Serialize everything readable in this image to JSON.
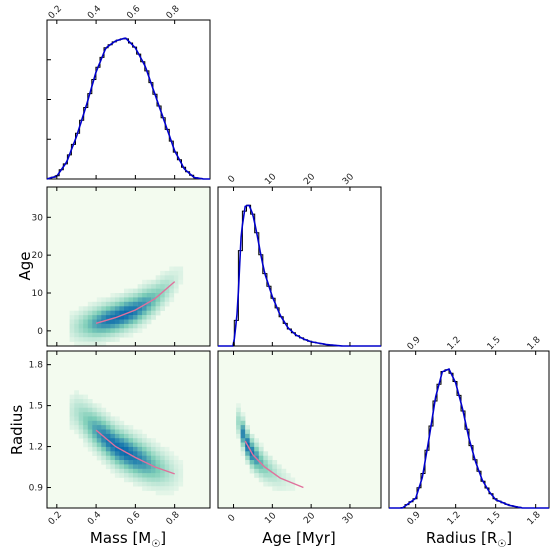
{
  "colors": {
    "hist_step": "#000000",
    "hist_smooth": "#0000cc",
    "density_low": "#f3fbef",
    "density_mid": "#7ccdb7",
    "density_high": "#0868ac",
    "contour": "#e0719c"
  },
  "chart_data": {
    "type": "corner",
    "variables": [
      {
        "key": "mass",
        "axis_label": "Mass [M",
        "axis_label_sub": "☉",
        "axis_label_end": "]",
        "ticks": [
          0.2,
          0.4,
          0.6,
          0.8
        ],
        "tick_labels": [
          "0.2",
          "0.4",
          "0.6",
          "0.8"
        ],
        "range": [
          0.15,
          0.98
        ]
      },
      {
        "key": "age",
        "axis_label": "Age [Myr]",
        "ticks": [
          0,
          10,
          20,
          30
        ],
        "tick_labels": [
          "0",
          "10",
          "20",
          "30"
        ],
        "range": [
          -4,
          38
        ]
      },
      {
        "key": "radius",
        "axis_label": "Radius [R",
        "axis_label_sub": "☉",
        "axis_label_end": "]",
        "ticks": [
          0.9,
          1.2,
          1.5,
          1.8
        ],
        "tick_labels": [
          "0.9",
          "1.2",
          "1.5",
          "1.8"
        ],
        "range": [
          0.7,
          1.9
        ]
      }
    ],
    "row_labels": {
      "age": "Age",
      "radius": "Radius"
    },
    "left_ticks": {
      "age": {
        "ticks": [
          0,
          10,
          20,
          30
        ],
        "labels": [
          "0",
          "10",
          "20",
          "30"
        ],
        "range": [
          -4,
          38
        ]
      },
      "radius": {
        "ticks": [
          0.9,
          1.2,
          1.5,
          1.8
        ],
        "labels": [
          "0.9",
          "1.2",
          "1.5",
          "1.8"
        ],
        "range": [
          0.75,
          1.9
        ]
      }
    },
    "histograms": {
      "mass": {
        "x": [
          0.15,
          0.2,
          0.25,
          0.3,
          0.35,
          0.4,
          0.45,
          0.5,
          0.55,
          0.6,
          0.65,
          0.7,
          0.75,
          0.8,
          0.85,
          0.9,
          0.95,
          0.98
        ],
        "y": [
          0.0,
          0.02,
          0.12,
          0.3,
          0.52,
          0.76,
          0.93,
          0.98,
          1.0,
          0.93,
          0.8,
          0.6,
          0.4,
          0.2,
          0.07,
          0.01,
          0.0,
          0.0
        ]
      },
      "age": {
        "x": [
          -4,
          0,
          1,
          2,
          3,
          4,
          5,
          6,
          7,
          8,
          10,
          12,
          14,
          16,
          18,
          20,
          24,
          28,
          32,
          38
        ],
        "y": [
          0.0,
          0.0,
          0.25,
          0.8,
          0.99,
          1.0,
          0.93,
          0.8,
          0.65,
          0.52,
          0.35,
          0.22,
          0.13,
          0.08,
          0.05,
          0.03,
          0.01,
          0.0,
          0.0,
          0.0
        ]
      },
      "radius": {
        "x": [
          0.7,
          0.8,
          0.9,
          0.95,
          1.0,
          1.05,
          1.1,
          1.15,
          1.2,
          1.25,
          1.3,
          1.35,
          1.4,
          1.45,
          1.5,
          1.6,
          1.7,
          1.8,
          1.9
        ],
        "y": [
          0.0,
          0.0,
          0.07,
          0.22,
          0.5,
          0.8,
          0.98,
          1.0,
          0.9,
          0.72,
          0.5,
          0.33,
          0.2,
          0.12,
          0.06,
          0.02,
          0.0,
          0.0,
          0.0
        ]
      }
    },
    "density_panels": [
      {
        "x": "mass",
        "y": "age",
        "trend": [
          [
            0.3,
            1.0
          ],
          [
            0.4,
            2.0
          ],
          [
            0.5,
            3.5
          ],
          [
            0.6,
            5.5
          ],
          [
            0.7,
            8.5
          ],
          [
            0.8,
            13.0
          ],
          [
            0.88,
            18.0
          ]
        ]
      },
      {
        "x": "mass",
        "y": "radius",
        "trend": [
          [
            0.3,
            1.45
          ],
          [
            0.4,
            1.32
          ],
          [
            0.5,
            1.2
          ],
          [
            0.6,
            1.12
          ],
          [
            0.7,
            1.05
          ],
          [
            0.8,
            1.0
          ]
        ]
      },
      {
        "x": "age",
        "y": "radius",
        "trend": [
          [
            1.5,
            1.38
          ],
          [
            3,
            1.24
          ],
          [
            5,
            1.14
          ],
          [
            8,
            1.05
          ],
          [
            12,
            0.97
          ],
          [
            18,
            0.9
          ],
          [
            25,
            0.85
          ]
        ]
      }
    ],
    "grid": false
  }
}
